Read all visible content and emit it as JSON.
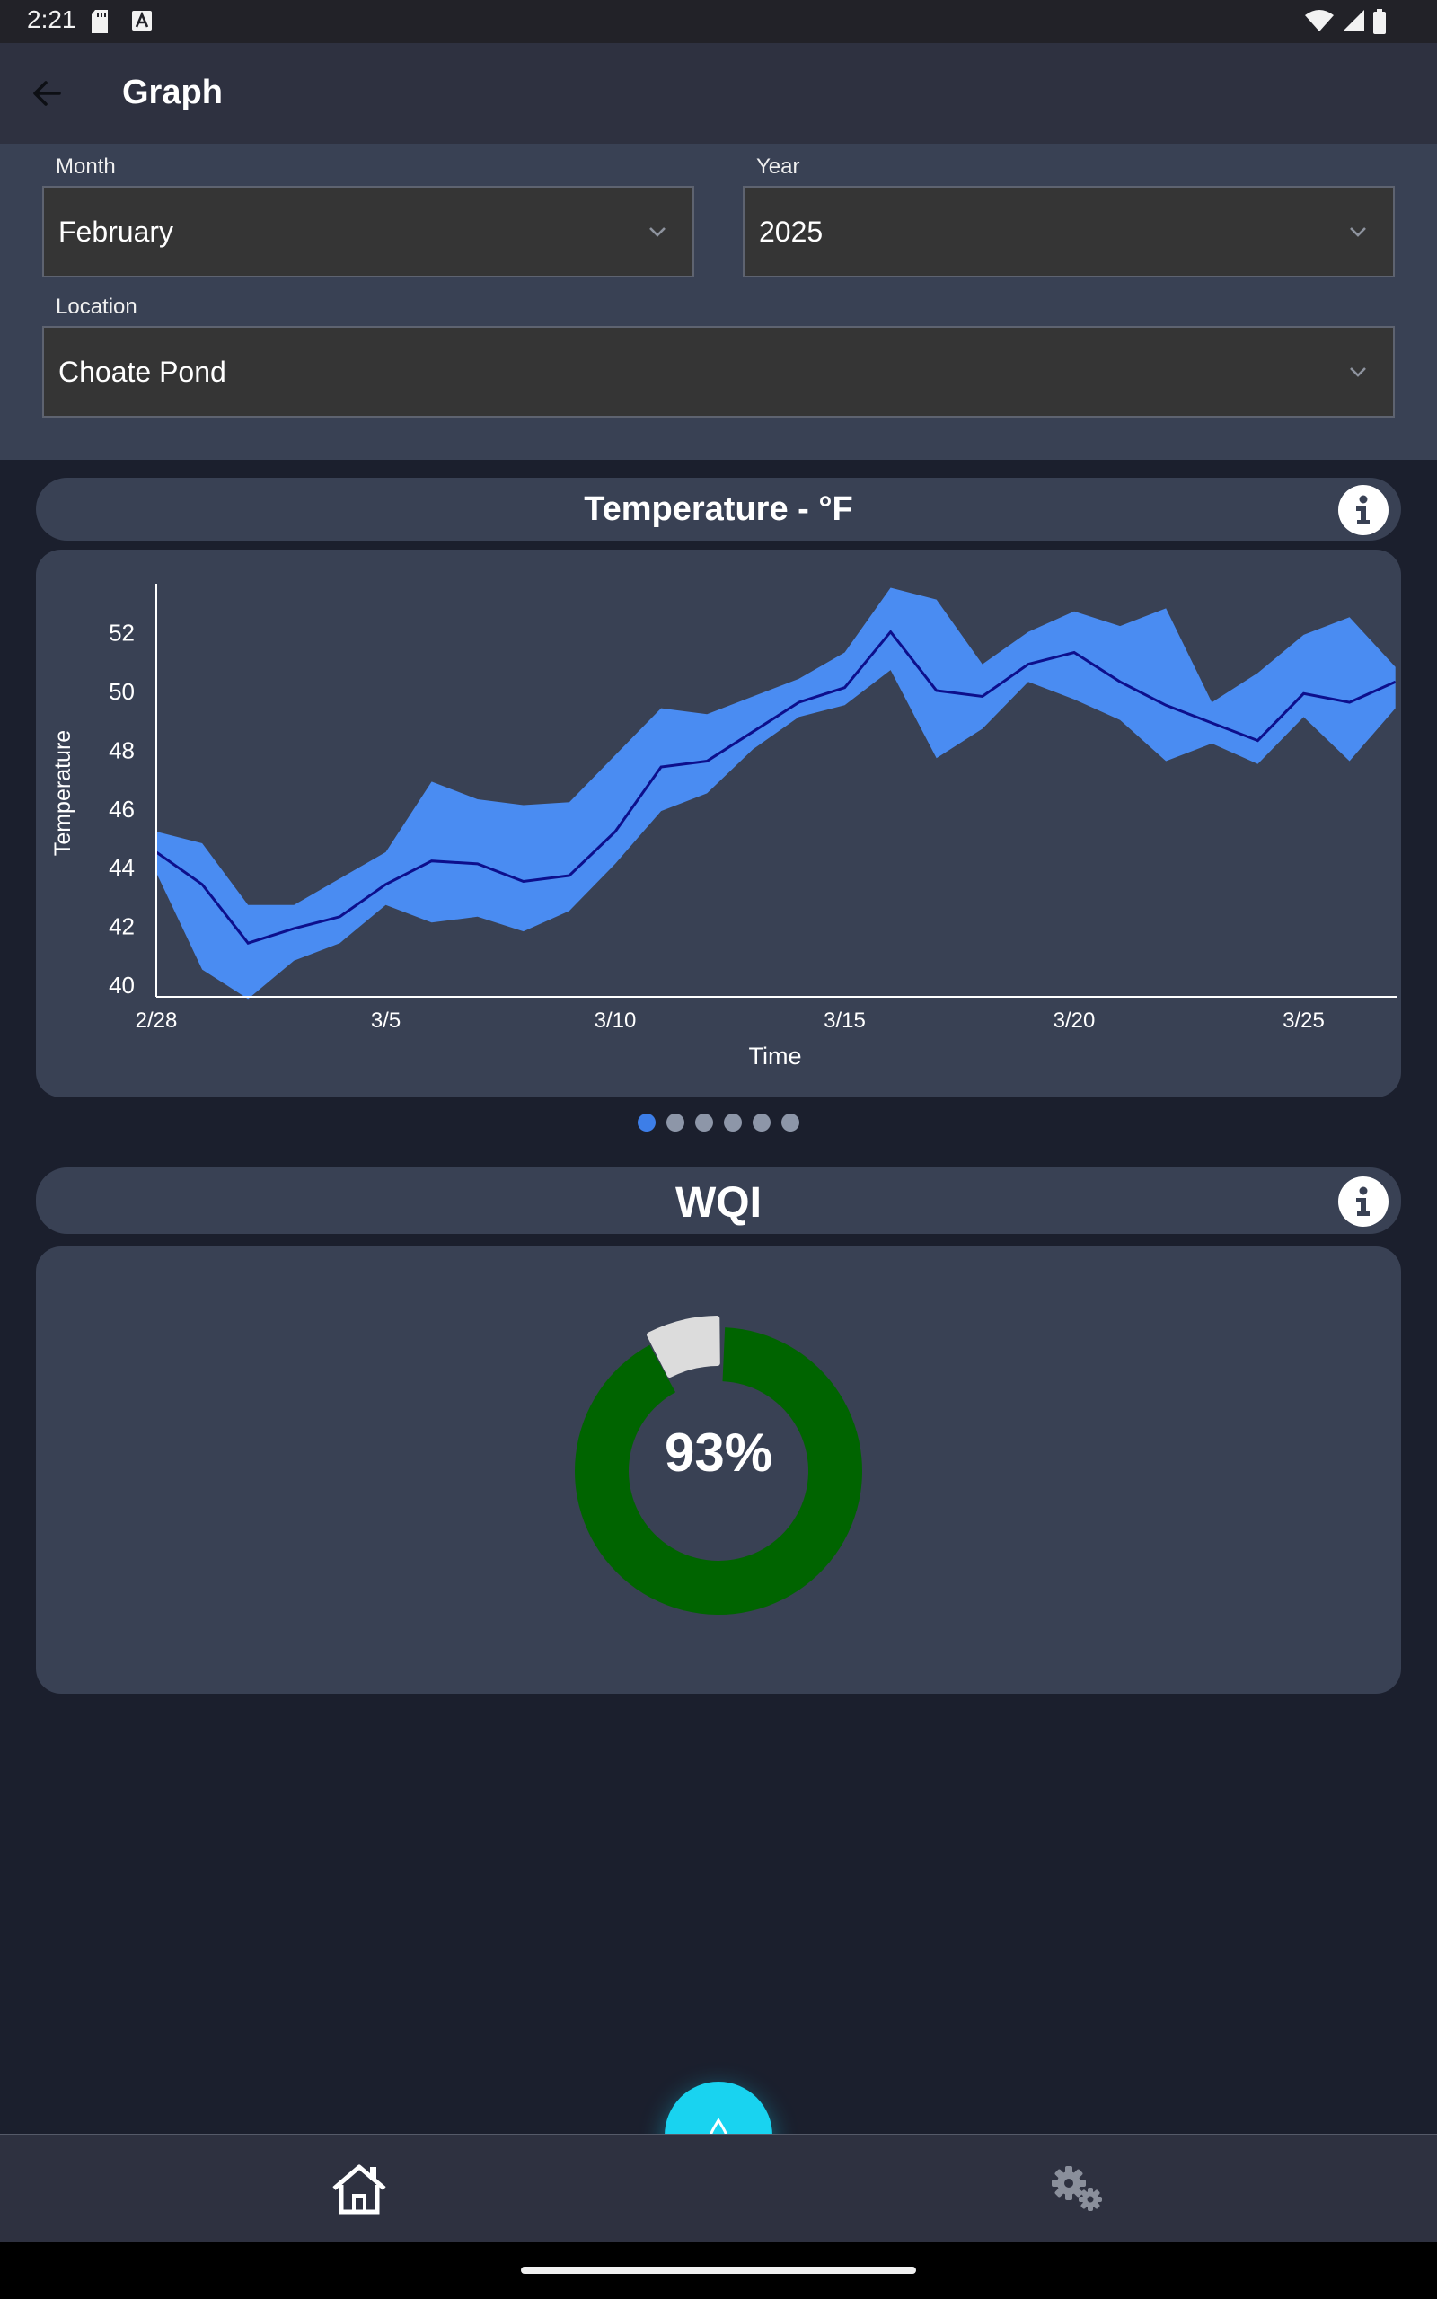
{
  "status_bar": {
    "time": "2:21",
    "icons": [
      "sd-card-icon",
      "a-box-icon",
      "wifi-icon",
      "signal-icon",
      "battery-icon"
    ]
  },
  "app_bar": {
    "back_icon": "arrow-left-icon",
    "title": "Graph"
  },
  "filters": {
    "month": {
      "label": "Month",
      "value": "February"
    },
    "year": {
      "label": "Year",
      "value": "2025"
    },
    "location": {
      "label": "Location",
      "value": "Choate Pond"
    }
  },
  "temperature_card": {
    "title": "Temperature - °F",
    "info_icon": "info-icon"
  },
  "wqi_card": {
    "title": "WQI",
    "info_icon": "info-icon",
    "percent_label": "93%"
  },
  "pager": {
    "count": 6,
    "active_index": 0
  },
  "bottom_nav": {
    "home_icon": "home-icon",
    "fab_icon": "water-drop-icon",
    "settings_icon": "gears-icon"
  },
  "colors": {
    "background": "#1b1f2d",
    "card": "#394154",
    "band": "#4a8cf2",
    "line": "#0d0f8c",
    "gauge_fill": "#006400",
    "gauge_pointer": "#dcdcdc",
    "fab": "#19d3f0",
    "dot_active": "#3d7ee8"
  },
  "chart_data": [
    {
      "type": "area",
      "title": "Temperature - °F",
      "xlabel": "Time",
      "ylabel": "Temperature",
      "x_tick_labels": [
        "2/28",
        "3/5",
        "3/10",
        "3/15",
        "3/20",
        "3/25"
      ],
      "y_ticks": [
        40,
        42,
        44,
        46,
        48,
        50,
        52
      ],
      "ylim": [
        39.5,
        54
      ],
      "grid": false,
      "x": [
        0,
        1,
        2,
        3,
        4,
        5,
        6,
        7,
        8,
        9,
        10,
        11,
        12,
        13,
        14,
        15,
        16,
        17,
        18,
        19,
        20,
        21,
        22,
        23,
        24,
        25,
        26,
        27
      ],
      "series": [
        {
          "role": "mean",
          "values": [
            44.5,
            43.4,
            41.4,
            41.9,
            42.3,
            43.4,
            44.2,
            44.1,
            43.5,
            43.7,
            45.2,
            47.4,
            47.6,
            48.6,
            49.6,
            50.1,
            52.0,
            50.0,
            49.8,
            50.9,
            51.3,
            50.3,
            49.5,
            48.9,
            48.3,
            49.9,
            49.6,
            50.3
          ]
        },
        {
          "role": "max",
          "values": [
            45.2,
            44.8,
            42.7,
            42.7,
            43.6,
            44.5,
            46.9,
            46.3,
            46.1,
            46.2,
            47.8,
            49.4,
            49.2,
            49.8,
            50.4,
            51.3,
            53.5,
            53.1,
            50.9,
            52.0,
            52.7,
            52.2,
            52.8,
            49.6,
            50.6,
            51.9,
            52.5,
            50.8
          ]
        },
        {
          "role": "min",
          "values": [
            43.8,
            40.5,
            39.5,
            40.8,
            41.4,
            42.7,
            42.1,
            42.3,
            41.8,
            42.5,
            44.1,
            45.9,
            46.5,
            48.0,
            49.1,
            49.5,
            50.7,
            47.7,
            48.7,
            50.3,
            49.7,
            49.0,
            47.6,
            48.2,
            47.5,
            49.1,
            47.6,
            49.4
          ]
        }
      ]
    },
    {
      "type": "pie",
      "title": "WQI",
      "values": [
        93,
        7
      ],
      "labels": [
        "93%",
        ""
      ]
    }
  ]
}
